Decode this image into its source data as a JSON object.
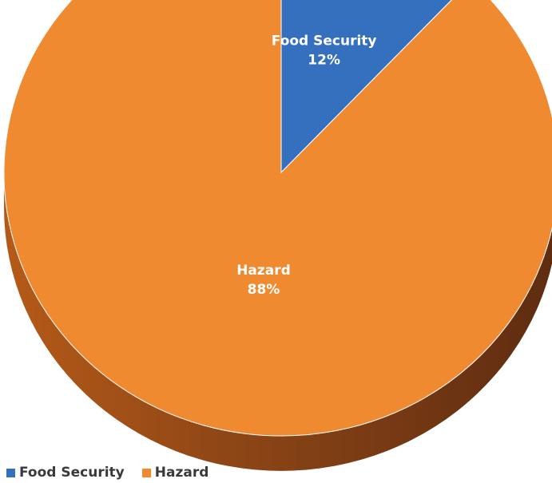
{
  "chart_data": {
    "type": "pie",
    "style": "3d",
    "slices": [
      {
        "label": "Food Security",
        "value": 12,
        "display": "12%",
        "color": "#3470bd"
      },
      {
        "label": "Hazard",
        "value": 88,
        "display": "88%",
        "color": "#f08a30"
      }
    ],
    "legend": {
      "position": "bottom-left",
      "items": [
        "Food Security",
        "Hazard"
      ]
    }
  }
}
